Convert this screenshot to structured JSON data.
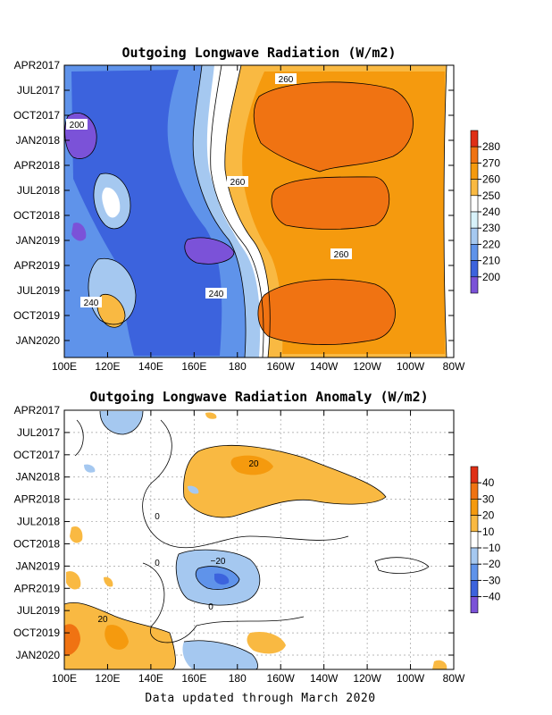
{
  "chart_data": [
    {
      "type": "heatmap",
      "title": "Outgoing Longwave Radiation (W/m2)",
      "x_ticks": [
        "100E",
        "120E",
        "140E",
        "160E",
        "180",
        "160W",
        "140W",
        "120W",
        "100W",
        "80W"
      ],
      "y_ticks": [
        "APR2017",
        "JUL2017",
        "OCT2017",
        "JAN2018",
        "APR2018",
        "JUL2018",
        "OCT2018",
        "JAN2019",
        "APR2019",
        "JUL2019",
        "OCT2019",
        "JAN2020"
      ],
      "colorbar": {
        "levels": [
          200,
          210,
          220,
          230,
          240,
          250,
          260,
          270,
          280
        ],
        "colors": [
          "#7b52d8",
          "#3c63dd",
          "#5f93ea",
          "#a5c8f0",
          "#d8f2fa",
          "#ffffff",
          "#f9b942",
          "#f59a0e",
          "#f07312",
          "#df2f16"
        ],
        "labels": [
          "280",
          "270",
          "260",
          "250",
          "240",
          "230",
          "220",
          "210",
          "200"
        ]
      },
      "contour_labels": [
        "200",
        "260",
        "260",
        "240",
        "260",
        "240"
      ],
      "summary": {
        "west_pacific_min": 200,
        "east_pacific_max": 270
      }
    },
    {
      "type": "heatmap",
      "title": "Outgoing Longwave Radiation Anomaly (W/m2)",
      "x_ticks": [
        "100E",
        "120E",
        "140E",
        "160E",
        "180",
        "160W",
        "140W",
        "120W",
        "100W",
        "80W"
      ],
      "y_ticks": [
        "APR2017",
        "JUL2017",
        "OCT2017",
        "JAN2018",
        "APR2018",
        "JUL2018",
        "OCT2018",
        "JAN2019",
        "APR2019",
        "JUL2019",
        "OCT2019",
        "JAN2020"
      ],
      "colorbar": {
        "levels": [
          -40,
          -30,
          -20,
          -10,
          10,
          20,
          30,
          40
        ],
        "colors": [
          "#7b52d8",
          "#3c63dd",
          "#5f93ea",
          "#a5c8f0",
          "#ffffff",
          "#f9b942",
          "#f59a0e",
          "#f07312",
          "#df2f16"
        ],
        "labels": [
          "40",
          "30",
          "20",
          "10",
          "−10",
          "−20",
          "−30",
          "−40"
        ]
      },
      "contour_labels": [
        "20",
        "0",
        "0",
        "−20",
        "20",
        "0"
      ],
      "grid": true
    }
  ],
  "footer": "Data updated through March 2020"
}
